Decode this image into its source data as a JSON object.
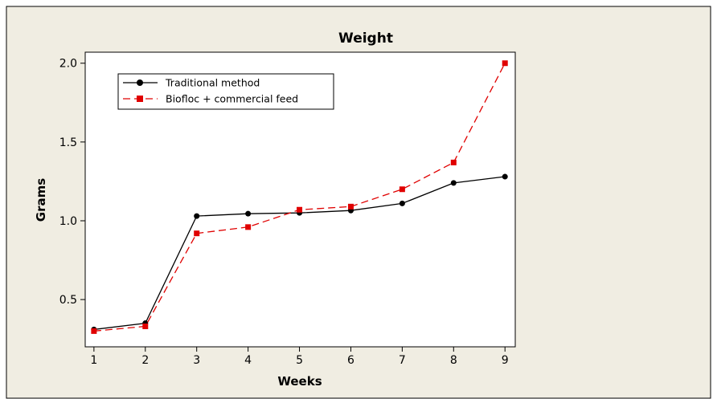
{
  "chart_data": {
    "type": "line",
    "title": "Weight",
    "xlabel": "Weeks",
    "ylabel": "Grams",
    "x": [
      1,
      2,
      3,
      4,
      5,
      6,
      7,
      8,
      9
    ],
    "x_ticks": [
      "1",
      "2",
      "3",
      "4",
      "5",
      "6",
      "7",
      "8",
      "9"
    ],
    "y_ticks": [
      "0.5",
      "1.0",
      "1.5",
      "2.0"
    ],
    "xlim": [
      0.83,
      9.2
    ],
    "ylim": [
      0.2,
      2.07
    ],
    "grid": false,
    "legend_position": "top-left",
    "series": [
      {
        "name": "Traditional method",
        "color": "#000000",
        "marker": "circle",
        "line_style": "solid",
        "values": [
          0.31,
          0.35,
          1.03,
          1.045,
          1.05,
          1.065,
          1.11,
          1.24,
          1.28
        ]
      },
      {
        "name": "Biofloc + commercial feed",
        "color": "#e00000",
        "marker": "square",
        "line_style": "dashed",
        "values": [
          0.3,
          0.33,
          0.92,
          0.96,
          1.07,
          1.09,
          1.2,
          1.37,
          2.0
        ]
      }
    ],
    "colors": {
      "figure_background": "#f0ede2",
      "plot_background": "#ffffff"
    }
  }
}
